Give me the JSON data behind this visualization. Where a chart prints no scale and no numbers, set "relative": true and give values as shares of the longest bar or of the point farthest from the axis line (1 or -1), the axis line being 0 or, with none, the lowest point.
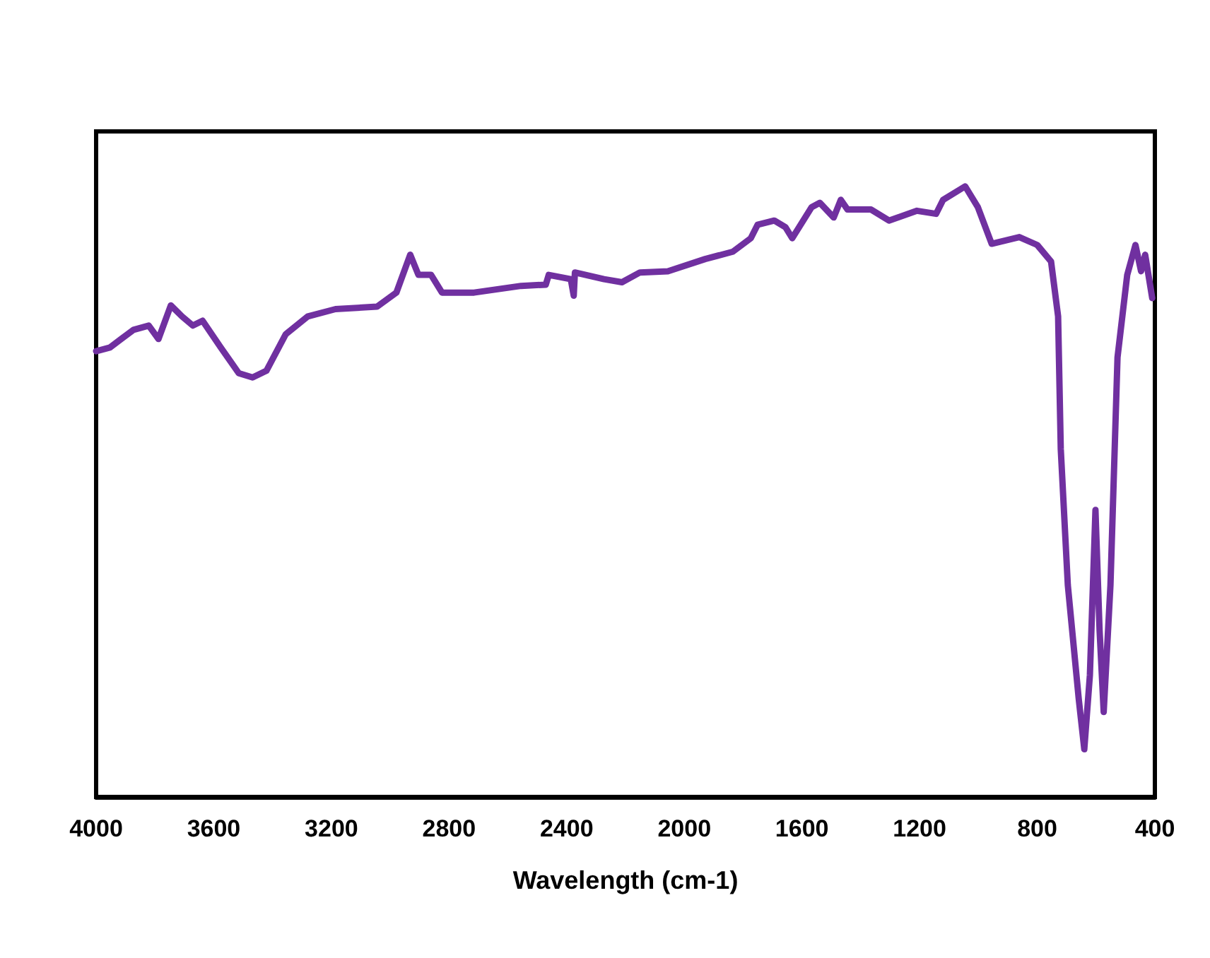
{
  "chart_data": {
    "type": "line",
    "relative": true,
    "xlabel": "Wavelength (cm-1)",
    "xlim": [
      4000,
      400
    ],
    "xticks": [
      4000,
      3600,
      3200,
      2800,
      2400,
      2000,
      1600,
      1200,
      800,
      400
    ],
    "marker": "none",
    "line_style": "solid",
    "series": [
      {
        "color": "#7030a0",
        "x": [
          4000,
          3953,
          3915,
          3873,
          3821,
          3788,
          3746,
          3708,
          3671,
          3638,
          3576,
          3515,
          3468,
          3421,
          3355,
          3280,
          3186,
          3045,
          2979,
          2932,
          2904,
          2861,
          2824,
          2715,
          2555,
          2471,
          2461,
          2386,
          2376,
          2372,
          2273,
          2212,
          2151,
          2056,
          1929,
          1835,
          1774,
          1751,
          1694,
          1656,
          1633,
          1567,
          1539,
          1492,
          1468,
          1445,
          1365,
          1304,
          1209,
          1144,
          1120,
          1045,
          1002,
          955,
          861,
          800,
          753,
          729,
          720,
          696,
          659,
          640,
          621,
          602,
          588,
          574,
          551,
          527,
          494,
          466,
          447,
          433,
          409
        ],
        "values": [
          0.73,
          0.736,
          0.75,
          0.765,
          0.772,
          0.75,
          0.805,
          0.787,
          0.772,
          0.78,
          0.736,
          0.694,
          0.687,
          0.698,
          0.758,
          0.787,
          0.799,
          0.803,
          0.826,
          0.888,
          0.855,
          0.855,
          0.826,
          0.826,
          0.837,
          0.839,
          0.855,
          0.848,
          0.821,
          0.859,
          0.848,
          0.843,
          0.859,
          0.861,
          0.881,
          0.893,
          0.915,
          0.937,
          0.944,
          0.933,
          0.915,
          0.966,
          0.973,
          0.949,
          0.978,
          0.962,
          0.962,
          0.944,
          0.96,
          0.955,
          0.978,
          1.0,
          0.966,
          0.906,
          0.917,
          0.904,
          0.877,
          0.787,
          0.57,
          0.347,
          0.161,
          0.078,
          0.199,
          0.47,
          0.273,
          0.139,
          0.347,
          0.72,
          0.855,
          0.904,
          0.861,
          0.888,
          0.817
        ]
      }
    ]
  }
}
